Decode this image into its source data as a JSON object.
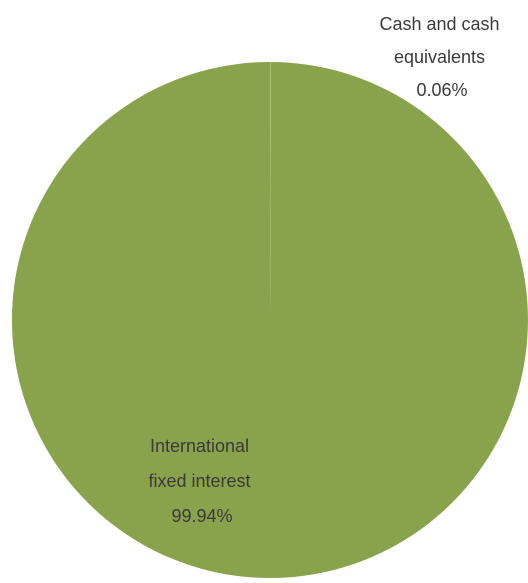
{
  "chart_data": {
    "type": "pie",
    "title": "",
    "colors": [
      "#88a34c",
      "#a3bf6a"
    ],
    "slices": [
      {
        "label_lines": [
          "International",
          "fixed interest"
        ],
        "value_text": "99.94%",
        "value": 99.94
      },
      {
        "label_lines": [
          "Cash and cash",
          "equivalents"
        ],
        "value_text": "0.06%",
        "value": 0.06
      }
    ]
  }
}
